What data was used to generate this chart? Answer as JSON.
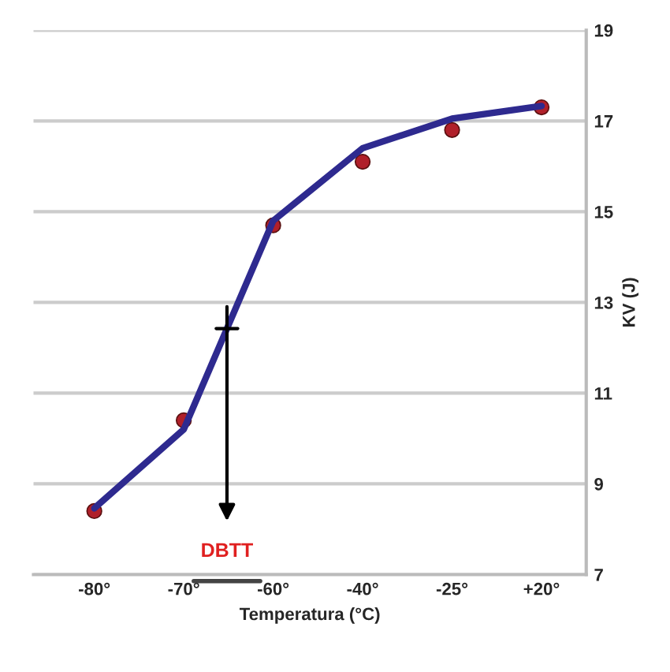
{
  "chart_data": {
    "type": "scatter",
    "xlabel": "Temperatura (°C)",
    "ylabel": "KV (J)",
    "categories": [
      "-80°",
      "-70°",
      "-60°",
      "-40°",
      "-25°",
      "+20°"
    ],
    "series": [
      {
        "color": "#b0202a",
        "marker": "circle",
        "values": [
          8.4,
          10.4,
          14.7,
          16.1,
          16.8,
          17.3
        ]
      },
      {
        "type": "line",
        "color": "#2e2a8f",
        "marker": "none",
        "line_style": "solid",
        "values": [
          8.46,
          10.2,
          14.8,
          16.4,
          17.05,
          17.33
        ]
      }
    ],
    "annotations": [
      "DBTT"
    ],
    "ylim": [
      7,
      19
    ],
    "yticks": [
      7,
      9,
      11,
      13,
      15,
      17,
      19
    ],
    "grid": "y",
    "legend": false
  }
}
